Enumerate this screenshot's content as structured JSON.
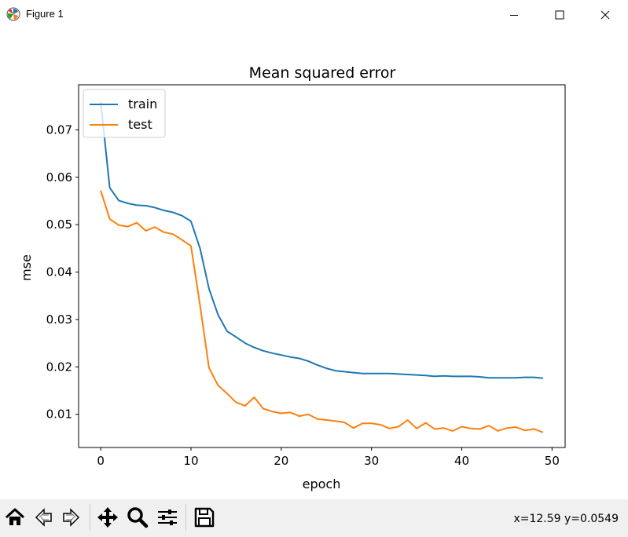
{
  "window": {
    "title": "Figure 1",
    "icon": "matplotlib-icon"
  },
  "window_controls": [
    {
      "name": "minimize-button",
      "icon": "minimize-icon"
    },
    {
      "name": "maximize-button",
      "icon": "maximize-icon"
    },
    {
      "name": "close-button",
      "icon": "close-icon"
    }
  ],
  "toolbar": {
    "buttons": [
      {
        "name": "home-button",
        "icon": "home-icon"
      },
      {
        "name": "back-button",
        "icon": "back-arrow-icon"
      },
      {
        "name": "forward-button",
        "icon": "forward-arrow-icon"
      },
      {
        "name": "pan-button",
        "icon": "move-icon"
      },
      {
        "name": "zoom-button",
        "icon": "magnifier-icon"
      },
      {
        "name": "configure-subplots-button",
        "icon": "sliders-icon"
      },
      {
        "name": "save-button",
        "icon": "floppy-disk-icon"
      }
    ],
    "coordinates": "x=12.59 y=0.0549"
  },
  "chart_data": {
    "type": "line",
    "title": "Mean squared error",
    "xlabel": "epoch",
    "ylabel": "mse",
    "xlim": [
      -2.45,
      51.45
    ],
    "ylim": [
      0.003,
      0.0795
    ],
    "xticks": [
      0,
      10,
      20,
      30,
      40,
      50
    ],
    "xtick_labels": [
      "0",
      "10",
      "20",
      "30",
      "40",
      "50"
    ],
    "yticks": [
      0.01,
      0.02,
      0.03,
      0.04,
      0.05,
      0.06,
      0.07
    ],
    "ytick_labels": [
      "0.01",
      "0.02",
      "0.03",
      "0.04",
      "0.05",
      "0.06",
      "0.07"
    ],
    "legend_position": "top-left",
    "grid": false,
    "x": [
      0,
      1,
      2,
      3,
      4,
      5,
      6,
      7,
      8,
      9,
      10,
      11,
      12,
      13,
      14,
      15,
      16,
      17,
      18,
      19,
      20,
      21,
      22,
      23,
      24,
      25,
      26,
      27,
      28,
      29,
      30,
      31,
      32,
      33,
      34,
      35,
      36,
      37,
      38,
      39,
      40,
      41,
      42,
      43,
      44,
      45,
      46,
      47,
      48,
      49
    ],
    "series": [
      {
        "name": "train",
        "color": "#1f77b4",
        "values": [
          0.076,
          0.0578,
          0.0551,
          0.0545,
          0.0541,
          0.054,
          0.0536,
          0.053,
          0.0526,
          0.0519,
          0.0507,
          0.045,
          0.0365,
          0.031,
          0.0275,
          0.0263,
          0.025,
          0.0241,
          0.0234,
          0.0229,
          0.0225,
          0.0221,
          0.0218,
          0.0212,
          0.0204,
          0.0197,
          0.0192,
          0.019,
          0.0188,
          0.0186,
          0.0186,
          0.0186,
          0.0186,
          0.0185,
          0.0184,
          0.0183,
          0.0182,
          0.018,
          0.0181,
          0.018,
          0.018,
          0.018,
          0.0179,
          0.0177,
          0.0177,
          0.0177,
          0.0177,
          0.0178,
          0.0178,
          0.0176
        ]
      },
      {
        "name": "test",
        "color": "#ff7f0e",
        "values": [
          0.0572,
          0.0512,
          0.0499,
          0.0496,
          0.0504,
          0.0487,
          0.0495,
          0.0484,
          0.048,
          0.0468,
          0.0455,
          0.033,
          0.0198,
          0.0161,
          0.0144,
          0.0125,
          0.0118,
          0.0136,
          0.0112,
          0.0106,
          0.0102,
          0.0104,
          0.0096,
          0.01,
          0.009,
          0.0088,
          0.0086,
          0.0083,
          0.0071,
          0.0081,
          0.0081,
          0.0078,
          0.007,
          0.0074,
          0.0088,
          0.007,
          0.0082,
          0.0069,
          0.0071,
          0.0065,
          0.0074,
          0.007,
          0.0069,
          0.0076,
          0.0065,
          0.0071,
          0.0073,
          0.0066,
          0.0069,
          0.0062
        ]
      }
    ]
  }
}
